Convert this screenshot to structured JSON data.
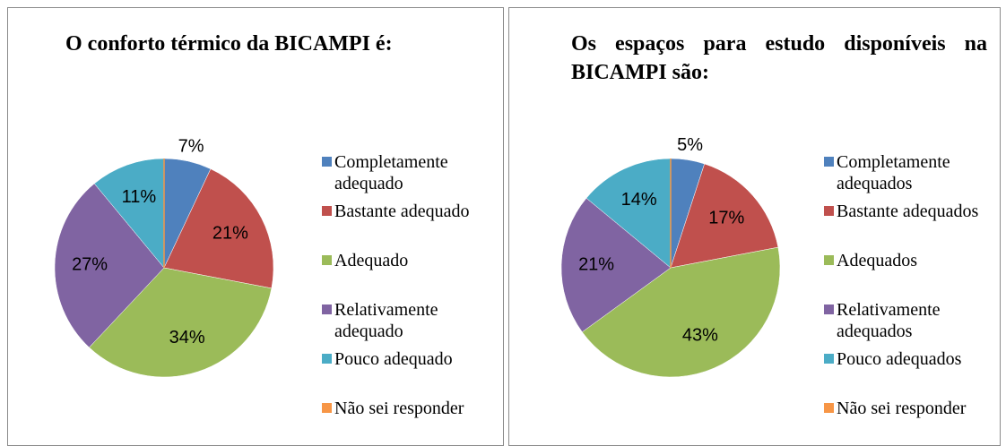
{
  "chart_data": [
    {
      "type": "pie",
      "title": "O conforto térmico da BICAMPI é:",
      "categories": [
        "Completamente adequado",
        "Bastante adequado",
        "Adequado",
        "Relativamente adequado",
        "Pouco adequado",
        "Não sei responder"
      ],
      "values": [
        7,
        21,
        34,
        27,
        11,
        0
      ],
      "value_labels": [
        "7%",
        "21%",
        "34%",
        "27%",
        "11%",
        null
      ],
      "colors": [
        "#4f81bd",
        "#c0504d",
        "#9bbb59",
        "#8064a2",
        "#4bacc6",
        "#f79646"
      ],
      "legend": "right",
      "title_align": "left"
    },
    {
      "type": "pie",
      "title": "Os espaços para estudo disponíveis na BICAMPI são:",
      "categories": [
        "Completamente adequados",
        "Bastante adequados",
        "Adequados",
        "Relativamente adequados",
        "Pouco adequados",
        "Não sei responder"
      ],
      "values": [
        5,
        17,
        43,
        21,
        14,
        0
      ],
      "value_labels": [
        "5%",
        "17%",
        "43%",
        "21%",
        "14%",
        null
      ],
      "colors": [
        "#4f81bd",
        "#c0504d",
        "#9bbb59",
        "#8064a2",
        "#4bacc6",
        "#f79646"
      ],
      "legend": "right",
      "title_align": "justify"
    }
  ]
}
